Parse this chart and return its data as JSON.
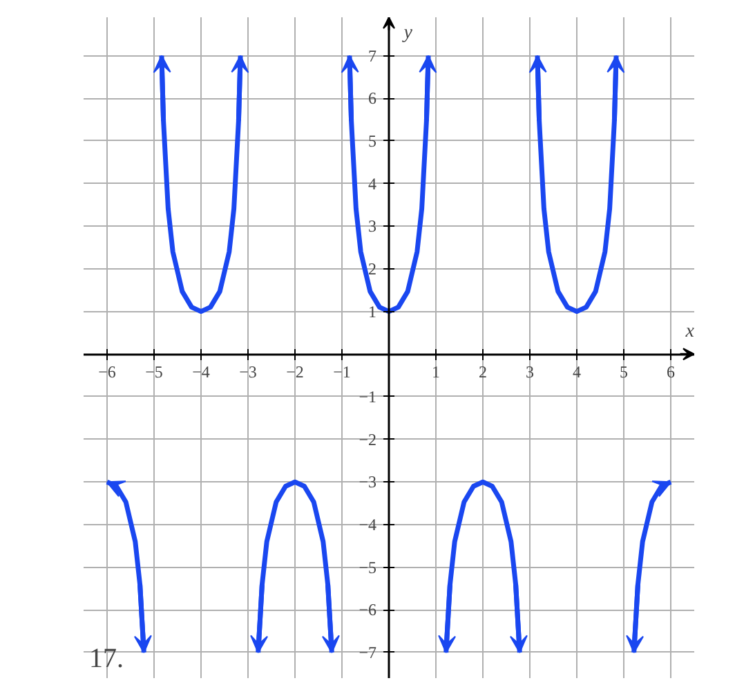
{
  "chart_data": {
    "type": "line",
    "xlabel": "x",
    "ylabel": "y",
    "annotations": [
      "17."
    ],
    "xlim": [
      -6.5,
      6.5
    ],
    "ylim": [
      -7.6,
      7.9
    ],
    "xticks": [
      -6,
      -5,
      -4,
      -3,
      -2,
      -1,
      1,
      2,
      3,
      4,
      5,
      6
    ],
    "yticks": [
      -7,
      -6,
      -5,
      -4,
      -3,
      -2,
      -1,
      1,
      2,
      3,
      4,
      5,
      6,
      7
    ],
    "grid": true,
    "line_style": "solid",
    "marker": "none",
    "series": [
      {
        "color": "#1a47f0",
        "x": [
          -6,
          -5.8,
          -5.6,
          -5.4,
          -5.3,
          -5.216
        ],
        "values": [
          -3,
          -3.1,
          -3.47,
          -4.4,
          -5.41,
          -7
        ]
      },
      {
        "color": "#1a47f0",
        "x": [
          -4.839,
          -4.8,
          -4.7,
          -4.6,
          -4.4,
          -4.2,
          -4,
          -3.8,
          -3.6,
          -3.4,
          -3.3,
          -3.2,
          -3.161
        ],
        "values": [
          7,
          5.47,
          3.41,
          2.4,
          1.47,
          1.1,
          1,
          1.1,
          1.47,
          2.4,
          3.41,
          5.47,
          7
        ]
      },
      {
        "color": "#1a47f0",
        "x": [
          -2.784,
          -2.7,
          -2.6,
          -2.4,
          -2.2,
          -2,
          -1.8,
          -1.6,
          -1.4,
          -1.3,
          -1.216
        ],
        "values": [
          -7,
          -5.41,
          -4.4,
          -3.47,
          -3.1,
          -3,
          -3.1,
          -3.47,
          -4.4,
          -5.41,
          -7
        ]
      },
      {
        "color": "#1a47f0",
        "x": [
          -0.839,
          -0.8,
          -0.7,
          -0.6,
          -0.4,
          -0.2,
          0,
          0.2,
          0.4,
          0.6,
          0.7,
          0.8,
          0.839
        ],
        "values": [
          7,
          5.47,
          3.41,
          2.4,
          1.47,
          1.1,
          1,
          1.1,
          1.47,
          2.4,
          3.41,
          5.47,
          7
        ]
      },
      {
        "color": "#1a47f0",
        "x": [
          1.216,
          1.3,
          1.4,
          1.6,
          1.8,
          2,
          2.2,
          2.4,
          2.6,
          2.7,
          2.784
        ],
        "values": [
          -7,
          -5.41,
          -4.4,
          -3.47,
          -3.1,
          -3,
          -3.1,
          -3.47,
          -4.4,
          -5.41,
          -7
        ]
      },
      {
        "color": "#1a47f0",
        "x": [
          3.161,
          3.2,
          3.3,
          3.4,
          3.6,
          3.8,
          4,
          4.2,
          4.4,
          4.6,
          4.7,
          4.8,
          4.839
        ],
        "values": [
          7,
          5.47,
          3.41,
          2.4,
          1.47,
          1.1,
          1,
          1.1,
          1.47,
          2.4,
          3.41,
          5.47,
          7
        ]
      },
      {
        "color": "#1a47f0",
        "x": [
          5.216,
          5.3,
          5.4,
          5.6,
          5.8,
          6
        ],
        "values": [
          -7,
          -5.41,
          -4.4,
          -3.47,
          -3.1,
          -3
        ]
      }
    ]
  }
}
